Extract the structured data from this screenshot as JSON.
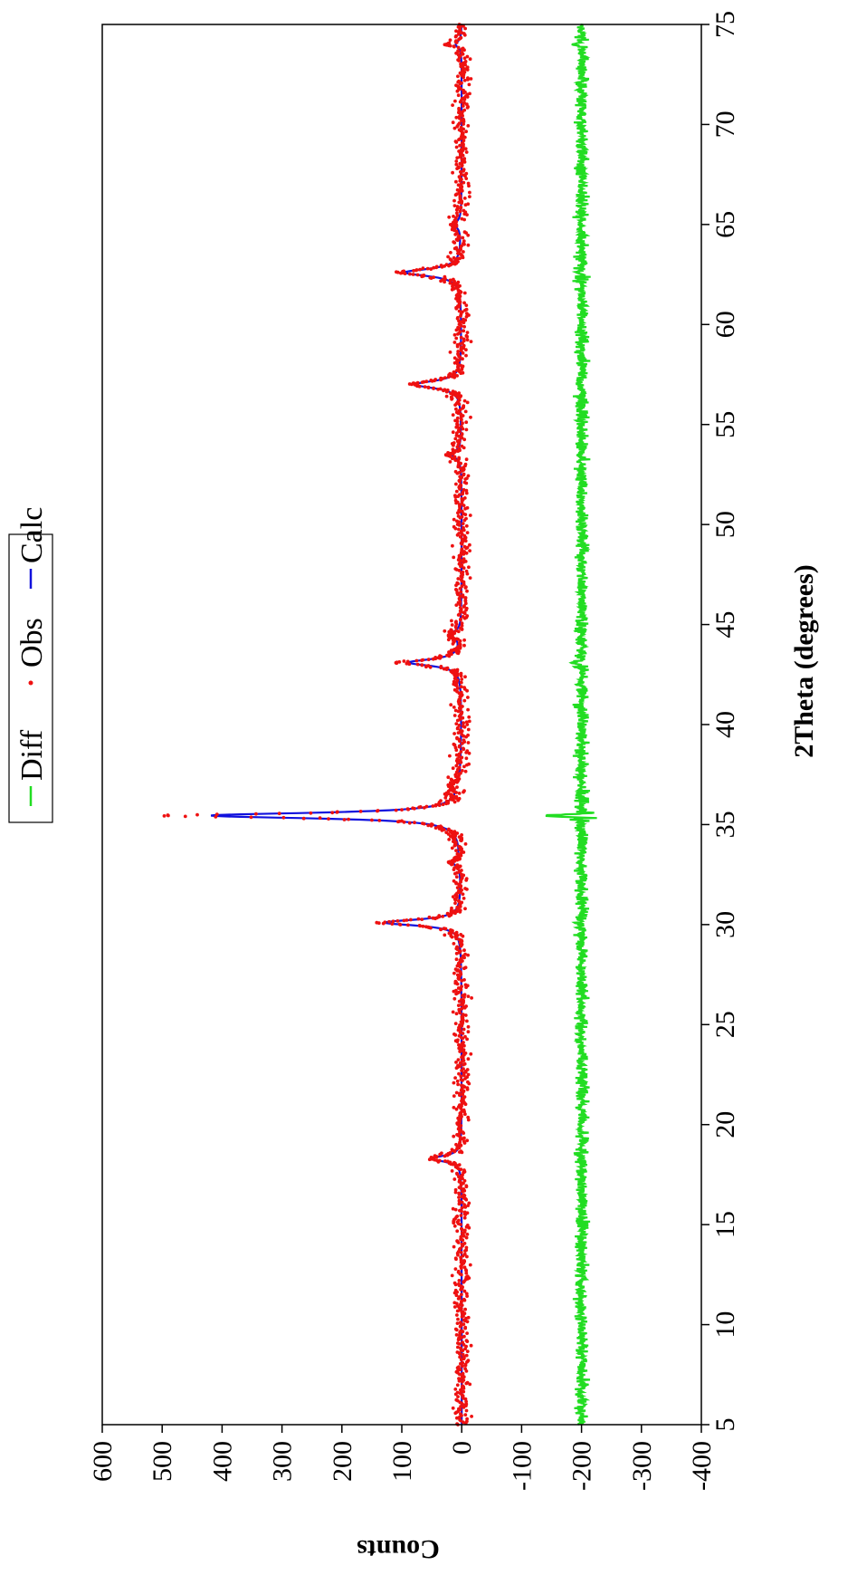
{
  "chart_data": {
    "type": "scatter",
    "title": "",
    "xlabel": "2Theta (degrees)",
    "ylabel": "Counts",
    "xlim": [
      5,
      75
    ],
    "ylim": [
      -400,
      600
    ],
    "x_ticks": [
      5,
      10,
      15,
      20,
      25,
      30,
      35,
      40,
      45,
      50,
      55,
      60,
      65,
      70,
      75
    ],
    "y_ticks": [
      600,
      500,
      400,
      300,
      200,
      100,
      0,
      -100,
      -200,
      -300,
      -400
    ],
    "grid": false,
    "legend": {
      "placement": "top",
      "entries": [
        {
          "name": "Diff",
          "marker": "line",
          "color": "#22dd22"
        },
        {
          "name": "Obs",
          "marker": "dot",
          "color": "#ee1111"
        },
        {
          "name": "Calc",
          "marker": "line",
          "color": "#1111dd"
        }
      ]
    },
    "peaks": [
      {
        "x": 18.3,
        "height": 50,
        "width": 0.18,
        "obs_max": 52
      },
      {
        "x": 30.1,
        "height": 128,
        "width": 0.18,
        "obs_max": 135
      },
      {
        "x": 33.1,
        "height": 12,
        "width": 0.2,
        "obs_max": 18
      },
      {
        "x": 35.45,
        "height": 418,
        "width": 0.17,
        "obs_max": 500
      },
      {
        "x": 37.0,
        "height": 12,
        "width": 0.2,
        "obs_max": 15
      },
      {
        "x": 43.1,
        "height": 88,
        "width": 0.2,
        "obs_max": 110
      },
      {
        "x": 44.5,
        "height": 18,
        "width": 0.2,
        "obs_max": 20
      },
      {
        "x": 53.5,
        "height": 15,
        "width": 0.25,
        "obs_max": 22
      },
      {
        "x": 57.0,
        "height": 78,
        "width": 0.22,
        "obs_max": 84
      },
      {
        "x": 62.6,
        "height": 95,
        "width": 0.22,
        "obs_max": 108
      },
      {
        "x": 65.0,
        "height": 10,
        "width": 0.25,
        "obs_max": 14
      },
      {
        "x": 74.0,
        "height": 10,
        "width": 0.2,
        "obs_max": 30
      }
    ],
    "series": [
      {
        "name": "Obs",
        "style": "points",
        "color": "#ee1111",
        "baseline": 0,
        "noise": 9
      },
      {
        "name": "Calc",
        "style": "line",
        "color": "#1111dd",
        "baseline": 0
      },
      {
        "name": "Diff",
        "style": "line",
        "color": "#22dd22",
        "offset": -200,
        "noise": 7
      }
    ]
  }
}
